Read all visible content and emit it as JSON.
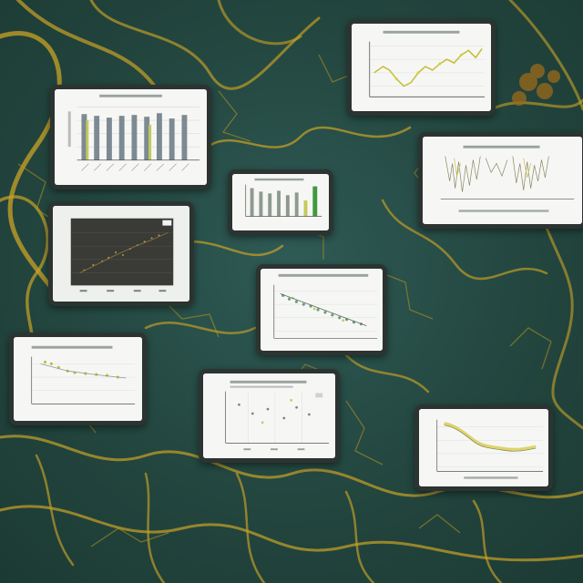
{
  "scene": {
    "description_colors": {
      "background": "#2a524c",
      "vein": "#c9a326",
      "vein_dark": "#8a6f14",
      "card_bg": "#f4f5f3",
      "card_frame": "#2c3431"
    }
  },
  "cards": {
    "count": 9
  }
}
